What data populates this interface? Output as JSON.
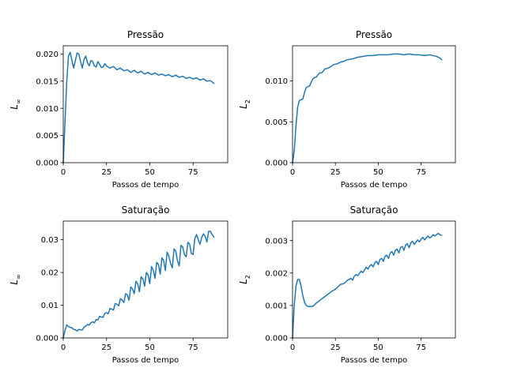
{
  "chart_data": [
    {
      "type": "line",
      "title": "Pressão",
      "xlabel": "Passos de tempo",
      "ylabel": "L",
      "ylabel_sub": "∞",
      "xlim": [
        0,
        95
      ],
      "ylim": [
        0,
        0.0215
      ],
      "xticks": [
        0,
        25,
        50,
        75
      ],
      "yticks": [
        0,
        0.005,
        0.01,
        0.015,
        0.02
      ],
      "ytick_labels": [
        "0.000",
        "0.005",
        "0.010",
        "0.015",
        "0.020"
      ],
      "grid": false,
      "series": [
        {
          "color": "#1f77b4",
          "x": [
            0,
            2,
            3,
            4,
            5,
            6,
            7,
            8,
            9,
            10,
            11,
            12,
            13,
            14,
            15,
            16,
            17,
            18,
            19,
            20,
            21,
            22,
            23,
            24,
            25,
            27,
            29,
            31,
            33,
            35,
            37,
            39,
            41,
            43,
            45,
            47,
            49,
            51,
            53,
            55,
            57,
            59,
            61,
            63,
            65,
            67,
            69,
            71,
            73,
            75,
            77,
            79,
            81,
            83,
            85,
            87
          ],
          "y": [
            0,
            0.0148,
            0.0196,
            0.0203,
            0.0188,
            0.0174,
            0.0188,
            0.0202,
            0.02,
            0.0186,
            0.0174,
            0.019,
            0.0196,
            0.0184,
            0.0178,
            0.0188,
            0.0186,
            0.0178,
            0.0176,
            0.0186,
            0.0181,
            0.0175,
            0.0176,
            0.0182,
            0.0178,
            0.0174,
            0.0177,
            0.0171,
            0.0174,
            0.0169,
            0.0171,
            0.0166,
            0.017,
            0.0165,
            0.0168,
            0.0163,
            0.0166,
            0.0162,
            0.0165,
            0.0161,
            0.0163,
            0.016,
            0.0162,
            0.0158,
            0.0161,
            0.0157,
            0.0159,
            0.0155,
            0.0157,
            0.0154,
            0.0156,
            0.0152,
            0.0154,
            0.015,
            0.0151,
            0.0146
          ]
        }
      ]
    },
    {
      "type": "line",
      "title": "Pressão",
      "xlabel": "Passos de tempo",
      "ylabel": "L",
      "ylabel_sub": "2",
      "xlim": [
        0,
        95
      ],
      "ylim": [
        0,
        0.0143
      ],
      "xticks": [
        0,
        25,
        50,
        75
      ],
      "yticks": [
        0,
        0.005,
        0.01
      ],
      "ytick_labels": [
        "0.000",
        "0.005",
        "0.010"
      ],
      "grid": false,
      "series": [
        {
          "color": "#1f77b4",
          "x": [
            0,
            1,
            2,
            3,
            4,
            5,
            6,
            7,
            8,
            9,
            10,
            11,
            12,
            13,
            14,
            15,
            16,
            17,
            18,
            19,
            20,
            22,
            24,
            26,
            28,
            30,
            32,
            35,
            38,
            41,
            44,
            47,
            50,
            53,
            56,
            59,
            62,
            65,
            68,
            71,
            74,
            77,
            80,
            82,
            84,
            86,
            87
          ],
          "y": [
            0,
            0.0015,
            0.0045,
            0.0068,
            0.0076,
            0.0077,
            0.0078,
            0.0086,
            0.0092,
            0.0093,
            0.0094,
            0.0099,
            0.0103,
            0.0104,
            0.0105,
            0.0108,
            0.011,
            0.011,
            0.0112,
            0.0115,
            0.0115,
            0.0117,
            0.012,
            0.0121,
            0.0123,
            0.0124,
            0.0126,
            0.0127,
            0.0129,
            0.013,
            0.0131,
            0.0131,
            0.0132,
            0.0132,
            0.0132,
            0.0133,
            0.0133,
            0.0132,
            0.0133,
            0.0132,
            0.0132,
            0.0131,
            0.0132,
            0.0131,
            0.013,
            0.0128,
            0.0126
          ]
        }
      ]
    },
    {
      "type": "line",
      "title": "Saturação",
      "xlabel": "Passos de tempo",
      "ylabel": "L",
      "ylabel_sub": "∞",
      "xlim": [
        0,
        95
      ],
      "ylim": [
        0,
        0.0357
      ],
      "xticks": [
        0,
        25,
        50,
        75
      ],
      "yticks": [
        0,
        0.01,
        0.02,
        0.03
      ],
      "ytick_labels": [
        "0.000",
        "0.01",
        "0.02",
        "0.03"
      ],
      "grid": false,
      "series": [
        {
          "color": "#1f77b4",
          "x": [
            0,
            1,
            2,
            3,
            4,
            5,
            6,
            7,
            8,
            9,
            10,
            11,
            12,
            13,
            14,
            15,
            16,
            17,
            18,
            19,
            20,
            21,
            22,
            23,
            24,
            25,
            26,
            27,
            28,
            29,
            30,
            31,
            32,
            33,
            34,
            35,
            36,
            37,
            38,
            39,
            40,
            41,
            42,
            43,
            44,
            45,
            46,
            47,
            48,
            49,
            50,
            51,
            52,
            53,
            54,
            55,
            56,
            57,
            58,
            59,
            60,
            61,
            62,
            63,
            64,
            65,
            66,
            67,
            68,
            69,
            70,
            71,
            72,
            73,
            74,
            75,
            76,
            77,
            78,
            79,
            80,
            81,
            82,
            83,
            84,
            85,
            86,
            87
          ],
          "y": [
            0,
            0.0022,
            0.004,
            0.0035,
            0.0032,
            0.0031,
            0.0026,
            0.0025,
            0.0021,
            0.0026,
            0.0025,
            0.0024,
            0.0033,
            0.0036,
            0.0041,
            0.0039,
            0.0047,
            0.0049,
            0.0046,
            0.0056,
            0.0055,
            0.0066,
            0.0064,
            0.0063,
            0.0075,
            0.0077,
            0.0074,
            0.009,
            0.0088,
            0.0085,
            0.0105,
            0.0103,
            0.0098,
            0.012,
            0.0116,
            0.0108,
            0.0135,
            0.0132,
            0.0115,
            0.0156,
            0.015,
            0.0135,
            0.0173,
            0.0165,
            0.0141,
            0.0187,
            0.018,
            0.0158,
            0.02,
            0.0193,
            0.0166,
            0.0218,
            0.0207,
            0.0182,
            0.0231,
            0.0225,
            0.0195,
            0.0245,
            0.0236,
            0.0206,
            0.0262,
            0.025,
            0.0228,
            0.0214,
            0.0272,
            0.0265,
            0.0235,
            0.022,
            0.0283,
            0.0278,
            0.0255,
            0.0248,
            0.0292,
            0.0287,
            0.0258,
            0.0255,
            0.0303,
            0.0316,
            0.03,
            0.0286,
            0.0307,
            0.0318,
            0.031,
            0.0293,
            0.0326,
            0.0326,
            0.0316,
            0.0308
          ]
        }
      ]
    },
    {
      "type": "line",
      "title": "Saturação",
      "xlabel": "Passos de tempo",
      "ylabel": "L",
      "ylabel_sub": "2",
      "xlim": [
        0,
        95
      ],
      "ylim": [
        0,
        0.0036
      ],
      "xticks": [
        0,
        25,
        50,
        75
      ],
      "yticks": [
        0,
        0.001,
        0.002,
        0.003
      ],
      "ytick_labels": [
        "0.000",
        "0.001",
        "0.002",
        "0.003"
      ],
      "grid": false,
      "series": [
        {
          "color": "#1f77b4",
          "x": [
            0,
            1,
            2,
            3,
            4,
            5,
            6,
            7,
            8,
            9,
            10,
            11,
            12,
            13,
            14,
            15,
            16,
            17,
            18,
            19,
            20,
            21,
            22,
            23,
            24,
            25,
            26,
            27,
            28,
            29,
            30,
            31,
            32,
            33,
            34,
            35,
            36,
            37,
            38,
            39,
            40,
            41,
            42,
            43,
            44,
            45,
            46,
            47,
            48,
            49,
            50,
            51,
            52,
            53,
            54,
            55,
            56,
            57,
            58,
            59,
            60,
            61,
            62,
            63,
            64,
            65,
            66,
            67,
            68,
            69,
            70,
            71,
            72,
            73,
            74,
            75,
            76,
            77,
            78,
            79,
            80,
            81,
            82,
            83,
            84,
            85,
            86,
            87
          ],
          "y": [
            0,
            0.001,
            0.0016,
            0.0018,
            0.0018,
            0.0016,
            0.0013,
            0.0011,
            0.001,
            0.00097,
            0.00096,
            0.00097,
            0.00098,
            0.00103,
            0.00108,
            0.00112,
            0.00116,
            0.0012,
            0.00124,
            0.00128,
            0.00132,
            0.00136,
            0.0014,
            0.00144,
            0.00147,
            0.0015,
            0.00155,
            0.0016,
            0.00165,
            0.00166,
            0.00168,
            0.00172,
            0.00178,
            0.0018,
            0.00184,
            0.00178,
            0.0019,
            0.00195,
            0.00192,
            0.00199,
            0.00206,
            0.00201,
            0.0021,
            0.00218,
            0.00212,
            0.00222,
            0.00226,
            0.00219,
            0.00232,
            0.00236,
            0.00226,
            0.00242,
            0.00245,
            0.00236,
            0.00252,
            0.00255,
            0.00245,
            0.00262,
            0.00266,
            0.00255,
            0.0027,
            0.00274,
            0.00262,
            0.00278,
            0.00282,
            0.0027,
            0.00287,
            0.0029,
            0.00278,
            0.00293,
            0.00298,
            0.00288,
            0.00295,
            0.00302,
            0.00296,
            0.00304,
            0.0031,
            0.00302,
            0.00308,
            0.00314,
            0.00308,
            0.00312,
            0.00318,
            0.00314,
            0.00318,
            0.00322,
            0.00318,
            0.00316
          ]
        }
      ]
    }
  ]
}
